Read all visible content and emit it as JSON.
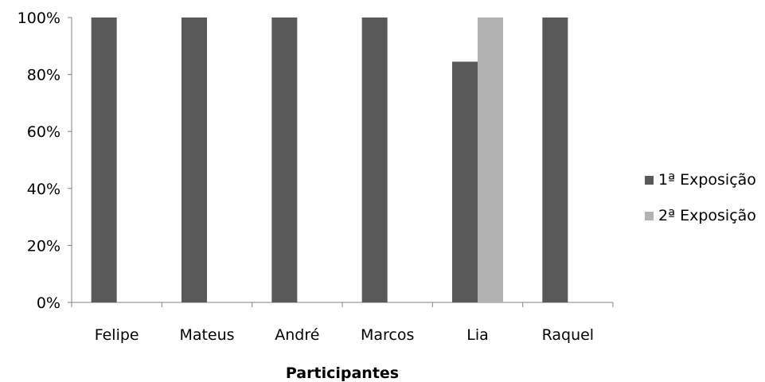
{
  "chart_data": {
    "type": "bar",
    "title": "",
    "xlabel": "Participantes",
    "ylabel": "",
    "categories": [
      "Felipe",
      "Mateus",
      "André",
      "Marcos",
      "Lia",
      "Raquel"
    ],
    "series": [
      {
        "name": "1ª Exposição",
        "values": [
          100,
          100,
          100,
          100,
          84.5,
          100
        ],
        "color": "#595959"
      },
      {
        "name": "2ª Exposição",
        "values": [
          null,
          null,
          null,
          null,
          100,
          null
        ],
        "color": "#b2b2b2"
      }
    ],
    "ylim": [
      0,
      100
    ],
    "yticks": [
      "0%",
      "20%",
      "40%",
      "60%",
      "80%",
      "100%"
    ],
    "ytick_values": [
      0,
      20,
      40,
      60,
      80,
      100
    ],
    "grid": false,
    "legend_position": "right"
  }
}
